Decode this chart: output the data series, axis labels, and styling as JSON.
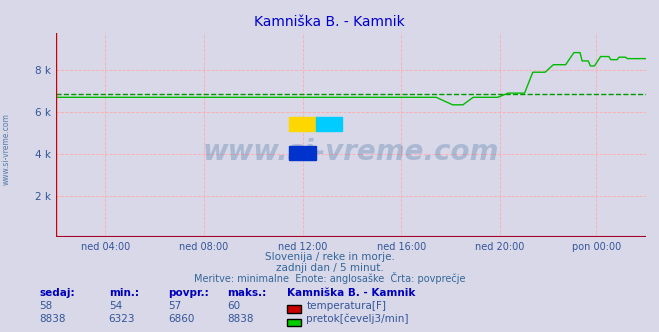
{
  "title": "Kamniška B. - Kamnik",
  "title_color": "#0000cc",
  "background_color": "#d8d8e8",
  "grid_color": "#ffaaaa",
  "avg_flow": 6860,
  "avg_color": "#009900",
  "flow_color": "#00bb00",
  "temp_color": "#cc0000",
  "xmin": 0,
  "xmax": 287,
  "ymin": 0,
  "ymax": 9766,
  "ytick_vals": [
    2000,
    4000,
    6000,
    8000
  ],
  "ytick_labels": [
    "2 k",
    "4 k",
    "6 k",
    "8 k"
  ],
  "xtick_positions": [
    24,
    72,
    120,
    168,
    216,
    263
  ],
  "xtick_labels": [
    "ned 04:00",
    "ned 08:00",
    "ned 12:00",
    "ned 16:00",
    "ned 20:00",
    "pon 00:00"
  ],
  "watermark": "www.si-vreme.com",
  "label1": "Slovenija / reke in morje.",
  "label2": "zadnji dan / 5 minut.",
  "label3": "Meritve: minimalne  Enote: anglosaške  Črta: povprečje",
  "footer_title": "Kamniška B. - Kamnik",
  "legend_temp": "temperatura[F]",
  "legend_flow": "pretok[čevelj3/min]",
  "col_sedaj": "sedaj:",
  "col_min": "min.:",
  "col_povpr": "povpr.:",
  "col_maks": "maks.:",
  "val_temp_sedaj": "58",
  "val_temp_min": "54",
  "val_temp_povpr": "57",
  "val_temp_maks": "60",
  "val_flow_sedaj": "8838",
  "val_flow_min": "6323",
  "val_flow_povpr": "6860",
  "val_flow_maks": "8838"
}
